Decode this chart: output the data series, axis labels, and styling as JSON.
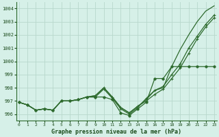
{
  "xlabel": "Graphe pression niveau de la mer (hPa)",
  "ylim": [
    995.5,
    1004.5
  ],
  "xlim": [
    -0.3,
    23.3
  ],
  "yticks": [
    996,
    997,
    998,
    999,
    1000,
    1001,
    1002,
    1003,
    1004
  ],
  "xticks": [
    0,
    1,
    2,
    3,
    4,
    5,
    6,
    7,
    8,
    9,
    10,
    11,
    12,
    13,
    14,
    15,
    16,
    17,
    18,
    19,
    20,
    21,
    22,
    23
  ],
  "bg_color": "#d6f0e8",
  "grid_color": "#b8d8cc",
  "line_color": "#2d6a2d",
  "lines": [
    [
      996.9,
      996.7,
      996.3,
      996.4,
      996.3,
      997.0,
      997.0,
      997.1,
      997.3,
      997.3,
      997.3,
      997.1,
      996.1,
      995.9,
      996.4,
      996.9,
      998.7,
      998.7,
      999.6,
      999.6,
      999.6,
      999.6,
      999.6,
      999.6
    ],
    [
      996.9,
      996.7,
      996.3,
      996.4,
      996.3,
      997.0,
      997.0,
      997.1,
      997.3,
      997.3,
      997.9,
      997.2,
      996.4,
      996.0,
      996.5,
      997.2,
      997.8,
      998.1,
      999.0,
      999.8,
      1001.0,
      1001.9,
      1002.8,
      1003.5
    ],
    [
      996.9,
      996.7,
      996.3,
      996.4,
      996.3,
      997.0,
      997.0,
      997.1,
      997.3,
      997.4,
      998.0,
      997.3,
      996.5,
      996.1,
      996.6,
      997.0,
      997.5,
      997.9,
      998.7,
      999.5,
      1000.6,
      1001.7,
      1002.6,
      1003.3
    ],
    [
      996.9,
      996.7,
      996.3,
      996.4,
      996.3,
      997.0,
      997.0,
      997.1,
      997.3,
      997.4,
      998.0,
      997.3,
      996.5,
      996.1,
      996.6,
      997.1,
      997.8,
      998.0,
      999.6,
      1000.9,
      1002.0,
      1003.0,
      1003.8,
      1004.2
    ]
  ],
  "marker_lines": [
    1,
    2,
    3
  ],
  "dot_line": 3
}
